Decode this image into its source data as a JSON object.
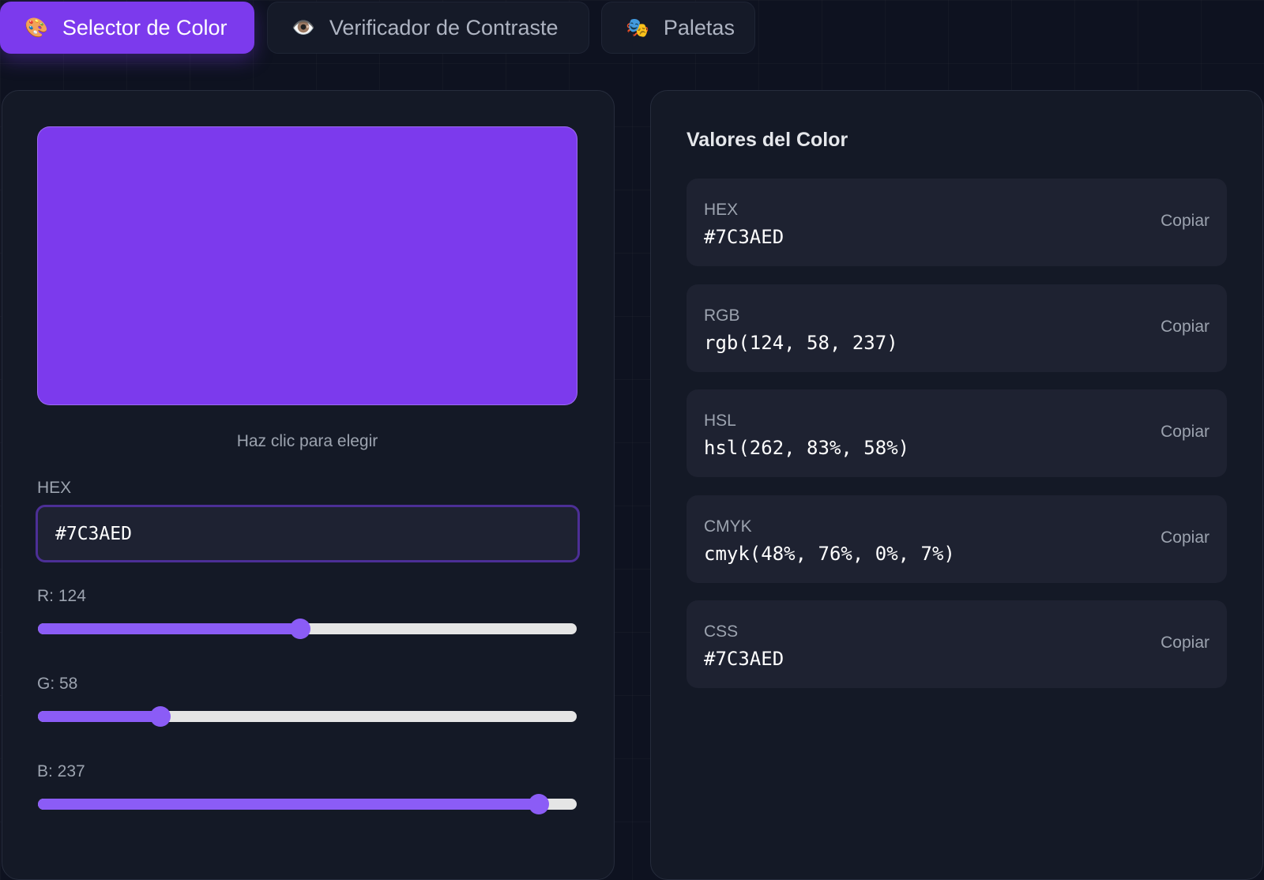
{
  "tabs": [
    {
      "icon": "🎨",
      "label": "Selector de Color"
    },
    {
      "icon": "👁️",
      "label": "Verificador de Contraste"
    },
    {
      "icon": "🎭",
      "label": "Paletas"
    }
  ],
  "picker": {
    "hint": "Haz clic para elegir",
    "hex_label": "HEX",
    "hex_value": "#7C3AED",
    "slider_range": [
      0,
      255
    ],
    "sliders": [
      {
        "label": "R: 124",
        "value": 124
      },
      {
        "label": "G: 58",
        "value": 58
      },
      {
        "label": "B: 237",
        "value": 237
      }
    ]
  },
  "values_panel": {
    "title": "Valores del Color",
    "rows": [
      {
        "label": "HEX",
        "value": "#7C3AED",
        "action": "Copiar"
      },
      {
        "label": "RGB",
        "value": "rgb(124, 58, 237)",
        "action": "Copiar"
      },
      {
        "label": "HSL",
        "value": "hsl(262, 83%, 58%)",
        "action": "Copiar"
      },
      {
        "label": "CMYK",
        "value": "cmyk(48%, 76%, 0%, 7%)",
        "action": "Copiar"
      },
      {
        "label": "CSS",
        "value": "#7C3AED",
        "action": "Copiar"
      }
    ]
  }
}
